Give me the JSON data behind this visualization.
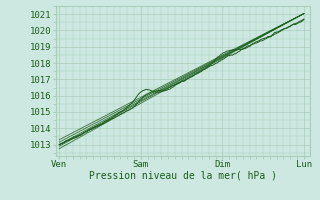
{
  "bg_color": "#cce8e0",
  "grid_color": "#aaccbb",
  "line_color": "#1a5c1a",
  "title": "Pression niveau de la mer( hPa )",
  "x_ticks": [
    0,
    1,
    2,
    3
  ],
  "x_labels": [
    "Ven",
    "Sam",
    "Dim",
    "Lun"
  ],
  "ylim": [
    1012.3,
    1021.5
  ],
  "yticks": [
    1013,
    1014,
    1015,
    1016,
    1017,
    1018,
    1019,
    1020,
    1021
  ],
  "xlim": [
    -0.04,
    3.08
  ]
}
